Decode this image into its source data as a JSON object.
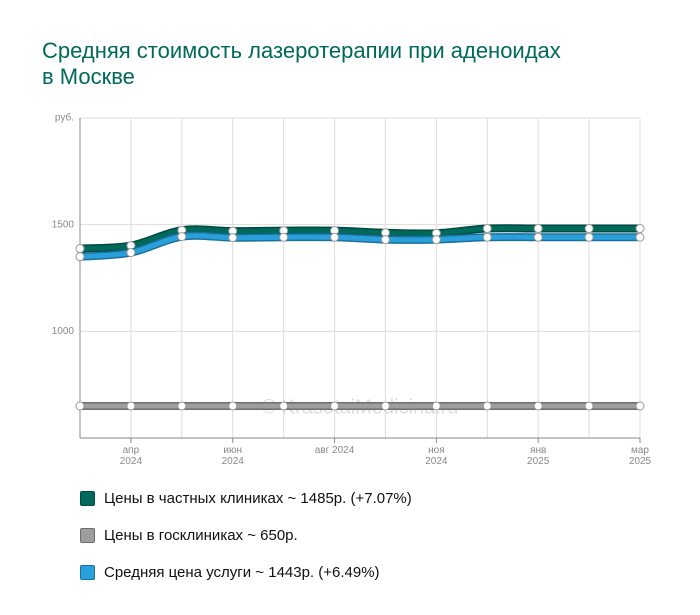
{
  "chart_data": {
    "type": "line",
    "title": "Средняя стоимость лазеротерапии при аденоидах в Москве",
    "watermark": "© KrasotaiMedicina.ru",
    "categories": [
      null,
      "апр 2024",
      null,
      "июн 2024",
      null,
      "авг 2024",
      null,
      "ноя 2024",
      null,
      "янв 2025",
      null,
      "мар 2025"
    ],
    "ylim": [
      500,
      2000
    ],
    "yticks": [
      1000,
      1500,
      {
        "value": 2000,
        "label": "руб."
      }
    ],
    "grid": true,
    "series": [
      {
        "name": "Цены в частных клиниках ~ 1485р. (+7.07%)",
        "color": "#00695c",
        "values": [
          1388,
          1402,
          1474,
          1470,
          1472,
          1472,
          1462,
          1460,
          1482,
          1482,
          1482,
          1482
        ]
      },
      {
        "name": "Цены в госклиниках ~ 650р.",
        "color": "#9e9e9e",
        "values": [
          650,
          650,
          650,
          650,
          650,
          650,
          650,
          650,
          650,
          650,
          650,
          650
        ]
      },
      {
        "name": "Средняя цена услуги ~ 1443р. (+6.49%)",
        "color": "#29a0dc",
        "values": [
          1350,
          1369,
          1444,
          1439,
          1441,
          1441,
          1430,
          1430,
          1441,
          1441,
          1441,
          1441
        ]
      }
    ]
  }
}
